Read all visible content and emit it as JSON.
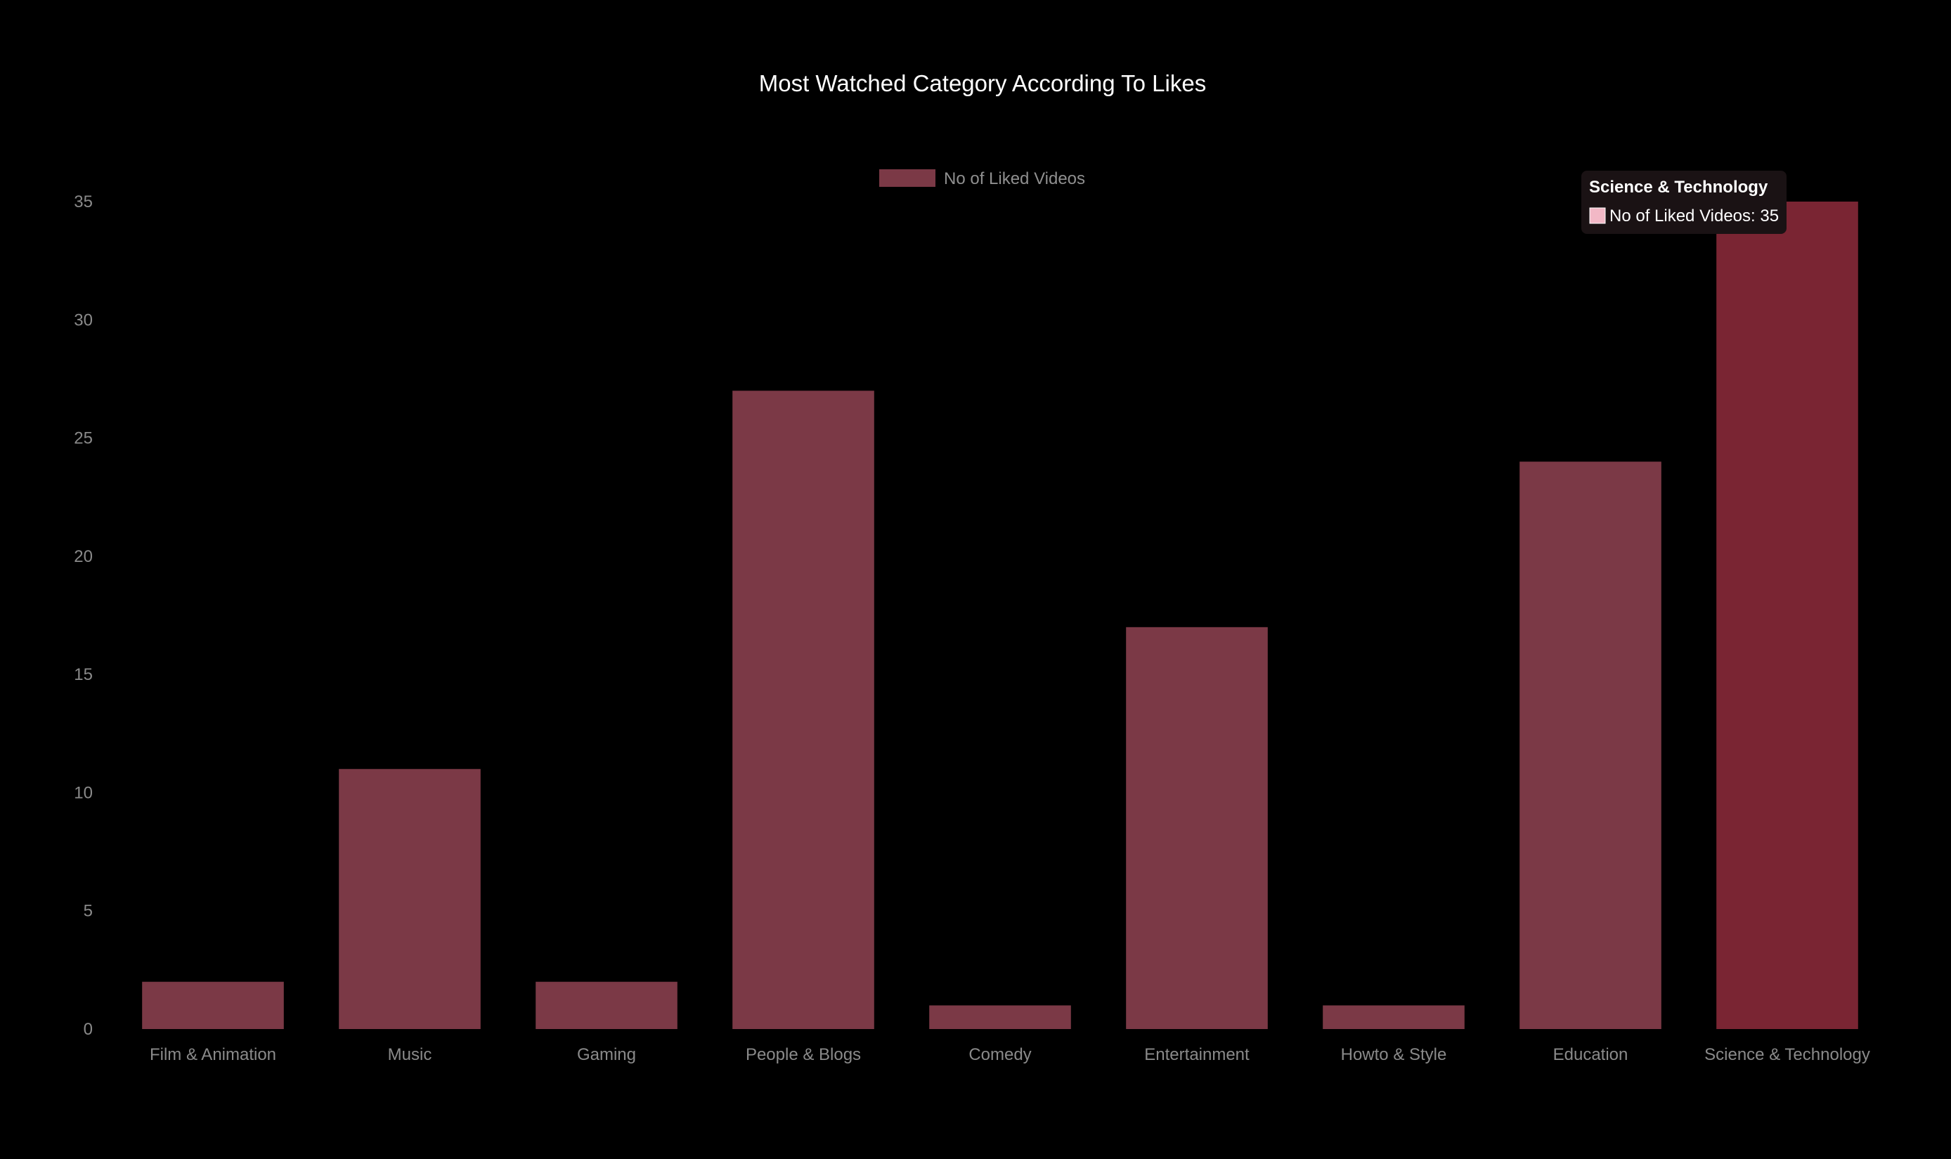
{
  "chart_data": {
    "type": "bar",
    "title": "Most Watched Category According To Likes",
    "categories": [
      "Film & Animation",
      "Music",
      "Gaming",
      "People & Blogs",
      "Comedy",
      "Entertainment",
      "Howto & Style",
      "Education",
      "Science & Technology"
    ],
    "series": [
      {
        "name": "No of Liked Videos",
        "values": [
          2,
          11,
          2,
          27,
          1,
          17,
          1,
          24,
          35
        ]
      }
    ],
    "ylim": [
      0,
      35
    ],
    "yticks": [
      0,
      5,
      10,
      15,
      20,
      25,
      30,
      35
    ],
    "grid": false,
    "legend_position": "top-center",
    "colors": {
      "background": "#000000",
      "bar": "#7b3946",
      "bar_highlight": "#7a2533",
      "legend_swatch": "#7b3946",
      "tooltip_bg": "#1a1214",
      "tooltip_swatch": "#f2b8c6"
    },
    "tooltip": {
      "title": "Science & Technology",
      "label": "No of Liked Videos: 35",
      "active_index": 8
    }
  }
}
